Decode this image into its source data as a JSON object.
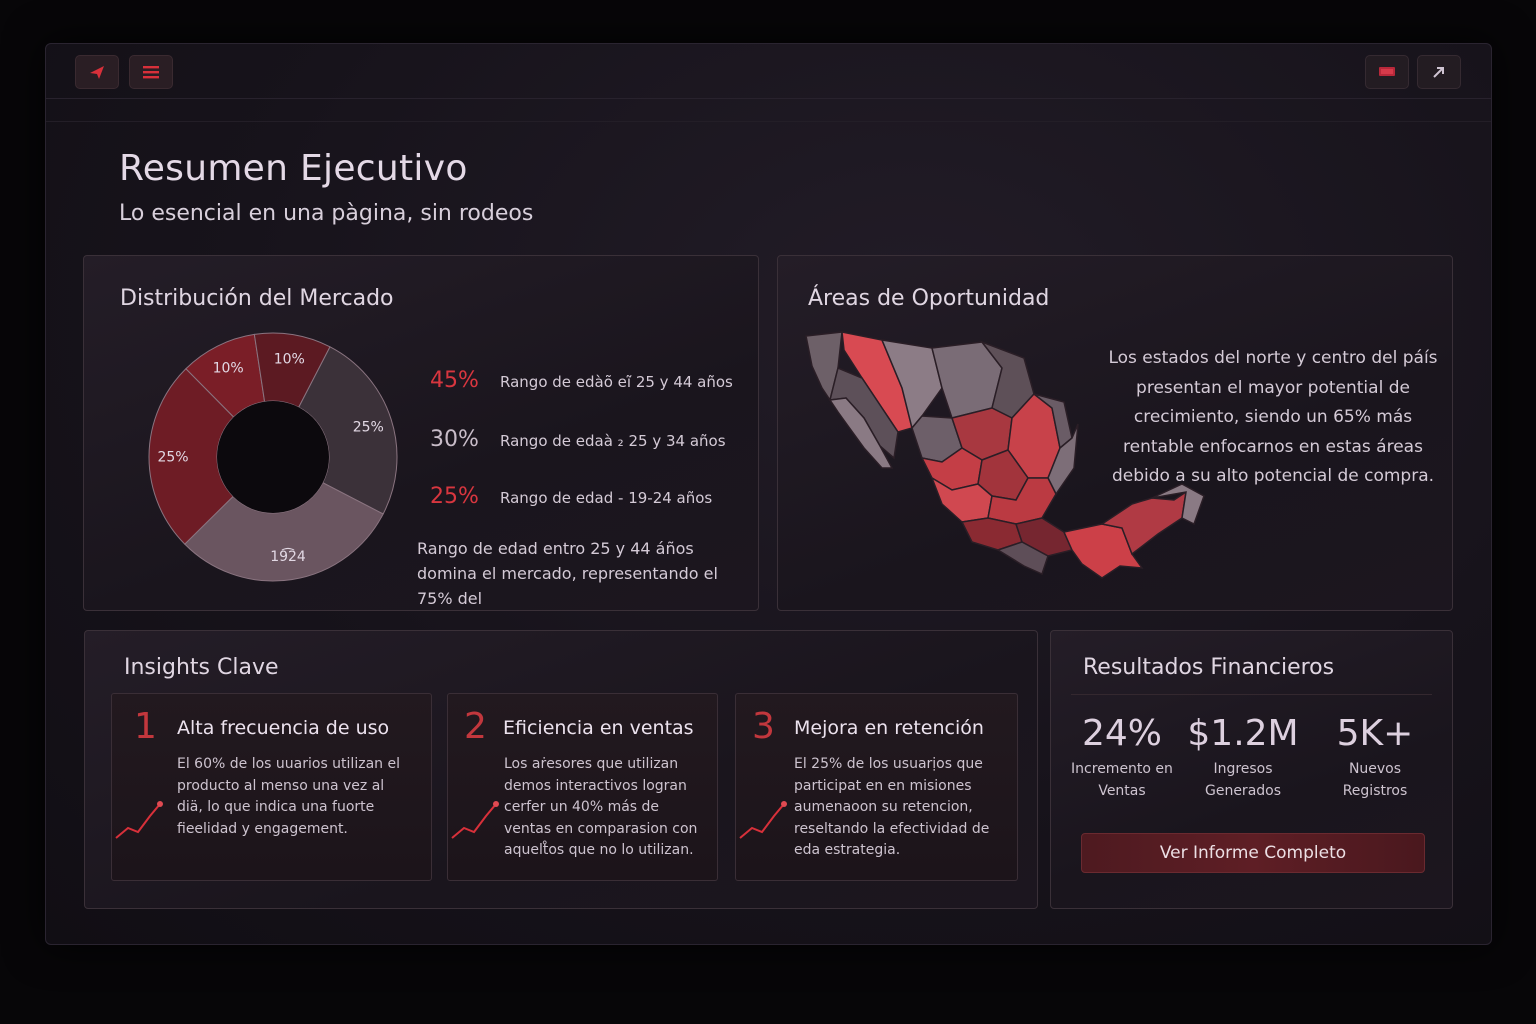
{
  "header": {
    "title": "Resumen Ejecutivo",
    "subtitle": "Lo esencial en una pàgina,  sin rodeos"
  },
  "market": {
    "title": "Distribución del Mercado",
    "legend": [
      {
        "pct": "45%",
        "text": "Rango de edàõ eĩ 25 y 44 años"
      },
      {
        "pct": "30%",
        "text": "Rango de edaà ₂ 25 y 34 años"
      },
      {
        "pct": "25%",
        "text": "Rango de edad  -  19-24 años"
      }
    ],
    "note": "Rango de edad entro 25 y 44 áños domina el mercado, representando el 75% del",
    "chart_data": {
      "type": "pie",
      "values": [
        10,
        10,
        25,
        30,
        25
      ],
      "labels": [
        "10%",
        "10%",
        "25%",
        "19͡24",
        "25%"
      ],
      "colors": [
        "#7a1e27",
        "#5c1a22",
        "#3b3139",
        "#6a5560",
        "#6e1c25"
      ],
      "title": ""
    }
  },
  "opportunity": {
    "title": "Áreas de Oportunidad",
    "text": "Los estados del norte y centro del páís presentan el mayor potential de crecimiento, siendo un 65% más rentable enfocarnos en estas áreas debido a su alto potencial de compra."
  },
  "insights": {
    "title": "Insights Clave",
    "items": [
      {
        "num": "1",
        "title": "Alta frecuencia de uso",
        "desc": "El 60% de los uuarios utilizan el producto al menso una vez al diä, lo que indica una fuorte fieelidad y engagement."
      },
      {
        "num": "2",
        "title": "Eficiencia en ventas",
        "desc": "Los aṙesores que utilizan demos interactivos logran cerfer un 40% más de ventas en comparasion con aquelt̊os que no lo utilizan."
      },
      {
        "num": "3",
        "title": "Mejora en retención",
        "desc": "El 25% de los usuarịos que participat en en misiones aumenaoon su retencion, reseltando la efectividad de eda estrategia."
      }
    ]
  },
  "financial": {
    "title": "Resultados Financieros",
    "stats": [
      {
        "value": "24%",
        "label": "Incremento en Ventas"
      },
      {
        "value": "$1.2M",
        "label": "Ingresos Generados"
      },
      {
        "value": "5K+",
        "label": "Nuevos Registros"
      }
    ],
    "cta": "Ver Informe Completo"
  },
  "icons": {
    "topbar_left": [
      "send-icon",
      "menu-icon"
    ],
    "topbar_right": [
      "display-icon",
      "expand-icon"
    ]
  },
  "colors": {
    "accent": "#c2373d",
    "background": "#17131b"
  }
}
